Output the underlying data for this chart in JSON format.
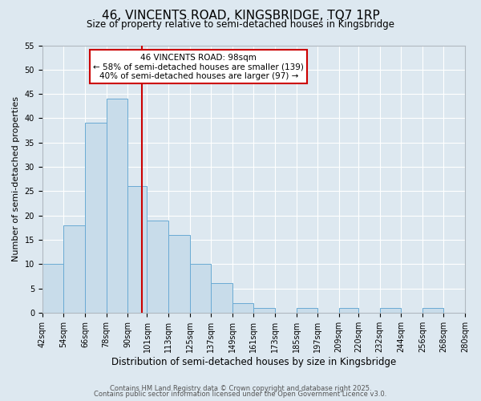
{
  "title": "46, VINCENTS ROAD, KINGSBRIDGE, TQ7 1RP",
  "subtitle": "Size of property relative to semi-detached houses in Kingsbridge",
  "xlabel": "Distribution of semi-detached houses by size in Kingsbridge",
  "ylabel": "Number of semi-detached properties",
  "bin_labels": [
    "42sqm",
    "54sqm",
    "66sqm",
    "78sqm",
    "90sqm",
    "101sqm",
    "113sqm",
    "125sqm",
    "137sqm",
    "149sqm",
    "161sqm",
    "173sqm",
    "185sqm",
    "197sqm",
    "209sqm",
    "220sqm",
    "232sqm",
    "244sqm",
    "256sqm",
    "268sqm",
    "280sqm"
  ],
  "bin_edges": [
    42,
    54,
    66,
    78,
    90,
    101,
    113,
    125,
    137,
    149,
    161,
    173,
    185,
    197,
    209,
    220,
    232,
    244,
    256,
    268,
    280
  ],
  "counts": [
    10,
    18,
    39,
    44,
    26,
    19,
    16,
    10,
    6,
    2,
    1,
    0,
    1,
    0,
    1,
    0,
    1,
    0,
    1,
    0
  ],
  "bar_color": "#c8dcea",
  "bar_edge_color": "#6aaad4",
  "vline_x": 98,
  "vline_color": "#cc0000",
  "ylim": [
    0,
    55
  ],
  "yticks": [
    0,
    5,
    10,
    15,
    20,
    25,
    30,
    35,
    40,
    45,
    50,
    55
  ],
  "annotation_title": "46 VINCENTS ROAD: 98sqm",
  "annotation_line1": "← 58% of semi-detached houses are smaller (139)",
  "annotation_line2": "40% of semi-detached houses are larger (97) →",
  "annotation_box_color": "#ffffff",
  "annotation_edge_color": "#cc0000",
  "footer1": "Contains HM Land Registry data © Crown copyright and database right 2025.",
  "footer2": "Contains public sector information licensed under the Open Government Licence v3.0.",
  "bg_color": "#dde8f0",
  "grid_color": "#ffffff",
  "title_fontsize": 11,
  "subtitle_fontsize": 8.5,
  "ylabel_fontsize": 8,
  "xlabel_fontsize": 8.5,
  "tick_fontsize": 7,
  "ann_fontsize": 7.5,
  "footer_fontsize": 6
}
